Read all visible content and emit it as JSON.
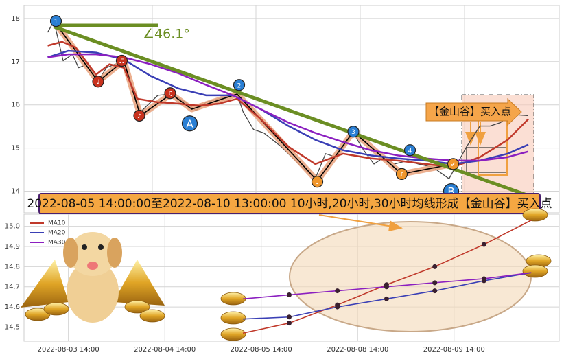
{
  "chart_data": [
    {
      "type": "line",
      "xlim": [
        0,
        52
      ],
      "ylim": [
        13.5,
        18.3
      ],
      "yticks": [
        14,
        15,
        16,
        17,
        18
      ],
      "grid": true,
      "angle_label": "∠46.1°",
      "buy_label": "【金山谷】买入点",
      "banner": "2022-08-05 14:00:00至2022-08-10 13:00:00 10小时,20小时,30小时均线形成【金山谷】买入点",
      "series": [
        {
          "color": "#444444",
          "width": 1.3,
          "x": [
            2.3,
            2.9,
            3.8,
            4.7,
            5.3,
            6.2,
            7.2,
            8,
            9.7,
            11.3,
            13,
            14.3,
            15.7,
            16.7,
            17.7,
            20.7,
            21.3,
            22.3,
            23.3,
            25,
            26.7,
            28.3,
            29.3,
            30.3,
            32,
            33,
            34,
            35,
            36,
            37.3,
            38.3,
            39.7,
            41.3,
            43,
            44.3,
            45.3,
            46.3,
            47.3,
            49
          ],
          "values": [
            17.68,
            17.94,
            17.02,
            17.17,
            16.86,
            16.94,
            16.54,
            16.86,
            17.02,
            15.83,
            16.22,
            16.25,
            16.06,
            15.87,
            16.06,
            16.25,
            15.83,
            15.43,
            15.35,
            15.03,
            14.63,
            14.29,
            14.87,
            14.79,
            15.35,
            14.95,
            14.63,
            14.79,
            14.63,
            14.71,
            14.63,
            14.56,
            14.29,
            15.03,
            15.51,
            15.51,
            15.59,
            15.78,
            15.75
          ]
        },
        {
          "color": "#000000",
          "halo": "#e9a27c",
          "width": 1.6,
          "x": [
            2.9,
            7.2,
            9.7,
            11.3,
            14.3,
            16.3,
            20.7,
            28.5,
            32,
            36.7,
            41.7
          ],
          "values": [
            17.94,
            16.54,
            17.02,
            15.75,
            16.25,
            15.9,
            16.25,
            14.24,
            15.38,
            14.4,
            14.63
          ]
        },
        {
          "color": "#c0392b",
          "width": 2.5,
          "x": [
            2.3,
            3.7,
            5,
            7,
            8.3,
            9.7,
            11,
            13,
            15,
            17,
            19,
            20.7,
            23,
            25.7,
            28.3,
            31,
            33.7,
            36.3,
            39,
            41.7,
            44.3,
            47,
            49
          ],
          "values": [
            17.37,
            17.46,
            17.33,
            16.7,
            16.94,
            16.86,
            16.14,
            16.06,
            16.03,
            15.98,
            16.03,
            16.14,
            15.67,
            15.03,
            14.63,
            14.87,
            14.76,
            14.71,
            14.63,
            14.56,
            14.79,
            15.19,
            15.67
          ]
        },
        {
          "color": "#3a3fb5",
          "width": 2.5,
          "x": [
            2.3,
            4.3,
            7,
            9.7,
            12.3,
            15,
            17.7,
            20.3,
            23,
            25.7,
            28.3,
            31,
            33.7,
            36.3,
            39,
            41.7,
            44.3,
            47,
            49
          ],
          "values": [
            17.1,
            17.25,
            17.21,
            17.05,
            16.67,
            16.38,
            16.22,
            16.22,
            15.9,
            15.51,
            15.19,
            14.95,
            14.83,
            14.76,
            14.71,
            14.63,
            14.71,
            14.87,
            15.08
          ]
        },
        {
          "color": "#8b1fc0",
          "width": 2.5,
          "x": [
            2.3,
            4.3,
            7,
            9.7,
            12.3,
            15,
            17.7,
            20.3,
            23,
            25.7,
            28.3,
            31,
            33.7,
            36.3,
            39,
            41.7,
            44.3,
            47,
            49
          ],
          "values": [
            17.1,
            17.17,
            17.17,
            17.1,
            16.94,
            16.73,
            16.46,
            16.22,
            15.9,
            15.59,
            15.35,
            15.14,
            14.95,
            14.83,
            14.76,
            14.71,
            14.71,
            14.79,
            14.92
          ]
        },
        {
          "color": "#6b8e23",
          "width": 5,
          "x": [
            2.9,
            49.7
          ],
          "values": [
            17.81,
            13.84
          ]
        },
        {
          "color": "#6b8e23",
          "width": 5,
          "x": [
            2.9,
            13
          ],
          "values": [
            17.84,
            17.84
          ]
        }
      ],
      "markers": [
        {
          "label": "1",
          "x": 3.1,
          "y": 17.94,
          "color": "#2a7fd4"
        },
        {
          "label": "2",
          "x": 20.9,
          "y": 16.46,
          "color": "#2a7fd4"
        },
        {
          "label": "3",
          "x": 32,
          "y": 15.38,
          "color": "#2a7fd4"
        },
        {
          "label": "4",
          "x": 37.5,
          "y": 14.95,
          "color": "#2a7fd4"
        },
        {
          "label": "A",
          "x": 16.1,
          "y": 15.57,
          "color": "#2a7fd4"
        },
        {
          "label": "B",
          "x": 41.5,
          "y": 14.0,
          "color": "#2a7fd4"
        },
        {
          "label": "♩",
          "x": 7.2,
          "y": 16.54,
          "color": "#c8321e"
        },
        {
          "label": "♬",
          "x": 9.5,
          "y": 17.02,
          "color": "#c8321e"
        },
        {
          "label": "♪",
          "x": 11.2,
          "y": 15.75,
          "color": "#c8321e"
        },
        {
          "label": "♫",
          "x": 14.2,
          "y": 16.27,
          "color": "#c8321e"
        },
        {
          "label": "♩",
          "x": 28.5,
          "y": 14.22,
          "color": "#f0962c"
        },
        {
          "label": "♪",
          "x": 36.7,
          "y": 14.4,
          "color": "#f0962c"
        },
        {
          "label": "✔",
          "x": 41.7,
          "y": 14.63,
          "color": "#f0962c"
        }
      ]
    },
    {
      "type": "line",
      "legend": "upper left",
      "grid": true,
      "xlim": [
        -0.46,
        5.09
      ],
      "ylim": [
        14.43,
        15.06
      ],
      "xticks": [
        {
          "value": 0,
          "label": "2022-08-03 14:00"
        },
        {
          "value": 1,
          "label": "2022-08-04 14:00"
        },
        {
          "value": 2,
          "label": "2022-08-05 14:00"
        },
        {
          "value": 3,
          "label": "2022-08-08 14:00"
        },
        {
          "value": 4,
          "label": "2022-08-09 14:00"
        }
      ],
      "yticks": [
        14.5,
        14.6,
        14.7,
        14.8,
        14.9,
        {
          "value": 15,
          "label": "15.0"
        }
      ],
      "x": [
        1.81,
        2.29,
        2.79,
        3.3,
        3.8,
        4.31,
        4.8
      ],
      "series": [
        {
          "name": "MA10",
          "color": "#c0392b",
          "values": [
            14.47,
            14.52,
            14.61,
            14.71,
            14.8,
            14.91,
            15.03
          ]
        },
        {
          "name": "MA20",
          "color": "#3a3fb5",
          "values": [
            14.54,
            14.55,
            14.6,
            14.64,
            14.68,
            14.73,
            14.77
          ]
        },
        {
          "name": "MA30",
          "color": "#8b1fc0",
          "values": [
            14.64,
            14.66,
            14.68,
            14.7,
            14.72,
            14.74,
            14.77
          ]
        }
      ]
    }
  ]
}
